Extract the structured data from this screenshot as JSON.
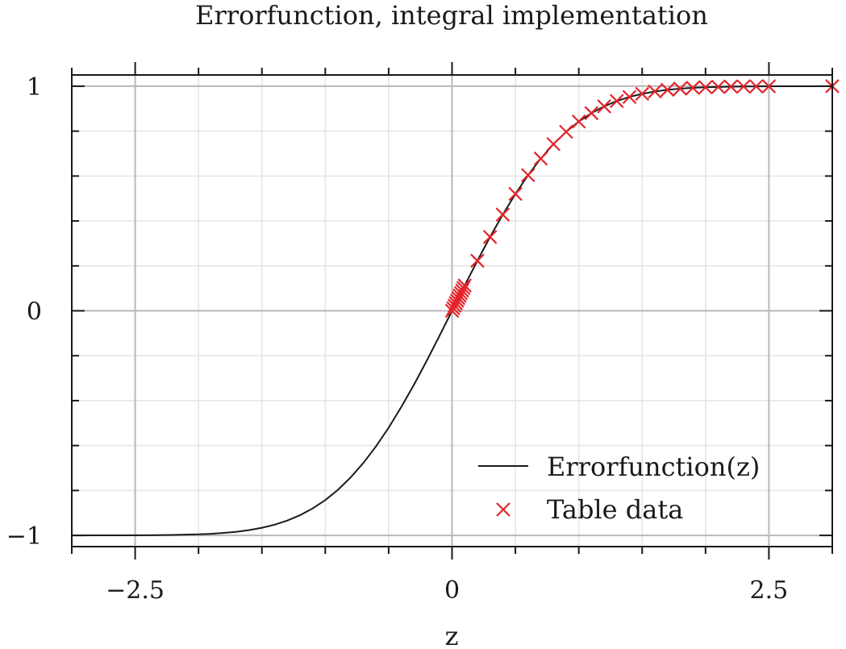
{
  "chart_data": {
    "type": "line",
    "title": "Errorfunction, integral implementation",
    "xlabel": "z",
    "ylabel": "",
    "xlim": [
      -3,
      3
    ],
    "ylim": [
      -1.05,
      1.05
    ],
    "grid": true,
    "legend_position": "bottom-right",
    "x_ticks": [
      -2.5,
      0,
      2.5
    ],
    "x_tick_labels": [
      "−2.5",
      "0",
      "2.5"
    ],
    "y_ticks": [
      -1,
      0,
      1
    ],
    "y_tick_labels": [
      "−1",
      "0",
      "1"
    ],
    "series": [
      {
        "name": "Errorfunction(z)",
        "style": "line",
        "color": "#1a1a1a",
        "x": [
          -3.0,
          -2.8,
          -2.6,
          -2.4,
          -2.2,
          -2.0,
          -1.9,
          -1.8,
          -1.7,
          -1.6,
          -1.5,
          -1.4,
          -1.3,
          -1.2,
          -1.1,
          -1.0,
          -0.9,
          -0.8,
          -0.7,
          -0.6,
          -0.5,
          -0.4,
          -0.3,
          -0.2,
          -0.1,
          0.0,
          0.1,
          0.2,
          0.3,
          0.4,
          0.5,
          0.6,
          0.7,
          0.8,
          0.9,
          1.0,
          1.1,
          1.2,
          1.3,
          1.4,
          1.5,
          1.6,
          1.7,
          1.8,
          1.9,
          2.0,
          2.2,
          2.4,
          2.6,
          2.8,
          3.0
        ],
        "y": [
          -1.0,
          -0.9999,
          -0.9998,
          -0.9993,
          -0.9981,
          -0.9953,
          -0.9928,
          -0.9891,
          -0.9838,
          -0.9763,
          -0.9661,
          -0.9523,
          -0.934,
          -0.9103,
          -0.8802,
          -0.8427,
          -0.7969,
          -0.7421,
          -0.6778,
          -0.6039,
          -0.5205,
          -0.4284,
          -0.3286,
          -0.2227,
          -0.1125,
          0.0,
          0.1125,
          0.2227,
          0.3286,
          0.4284,
          0.5205,
          0.6039,
          0.6778,
          0.7421,
          0.7969,
          0.8427,
          0.8802,
          0.9103,
          0.934,
          0.9523,
          0.9661,
          0.9763,
          0.9838,
          0.9891,
          0.9928,
          0.9953,
          0.9981,
          0.9993,
          0.9998,
          0.9999,
          1.0
        ]
      },
      {
        "name": "Table data",
        "style": "marker-x",
        "color": "#e3242b",
        "x": [
          0.0,
          0.01,
          0.02,
          0.03,
          0.04,
          0.05,
          0.06,
          0.07,
          0.08,
          0.09,
          0.1,
          0.2,
          0.3,
          0.4,
          0.5,
          0.6,
          0.7,
          0.8,
          0.9,
          1.0,
          1.1,
          1.2,
          1.3,
          1.4,
          1.5,
          1.6,
          1.7,
          1.8,
          1.9,
          2.0,
          2.1,
          2.2,
          2.3,
          2.4,
          2.5,
          3.0
        ],
        "y": [
          0.0,
          0.0113,
          0.0226,
          0.0338,
          0.0451,
          0.0564,
          0.0676,
          0.0789,
          0.0901,
          0.1013,
          0.1125,
          0.2227,
          0.3286,
          0.4284,
          0.5205,
          0.6039,
          0.6778,
          0.7421,
          0.7969,
          0.8427,
          0.8802,
          0.9103,
          0.934,
          0.9523,
          0.9661,
          0.9763,
          0.9838,
          0.9891,
          0.9928,
          0.9953,
          0.997,
          0.9981,
          0.9989,
          0.9993,
          0.9996,
          1.0
        ]
      }
    ]
  }
}
